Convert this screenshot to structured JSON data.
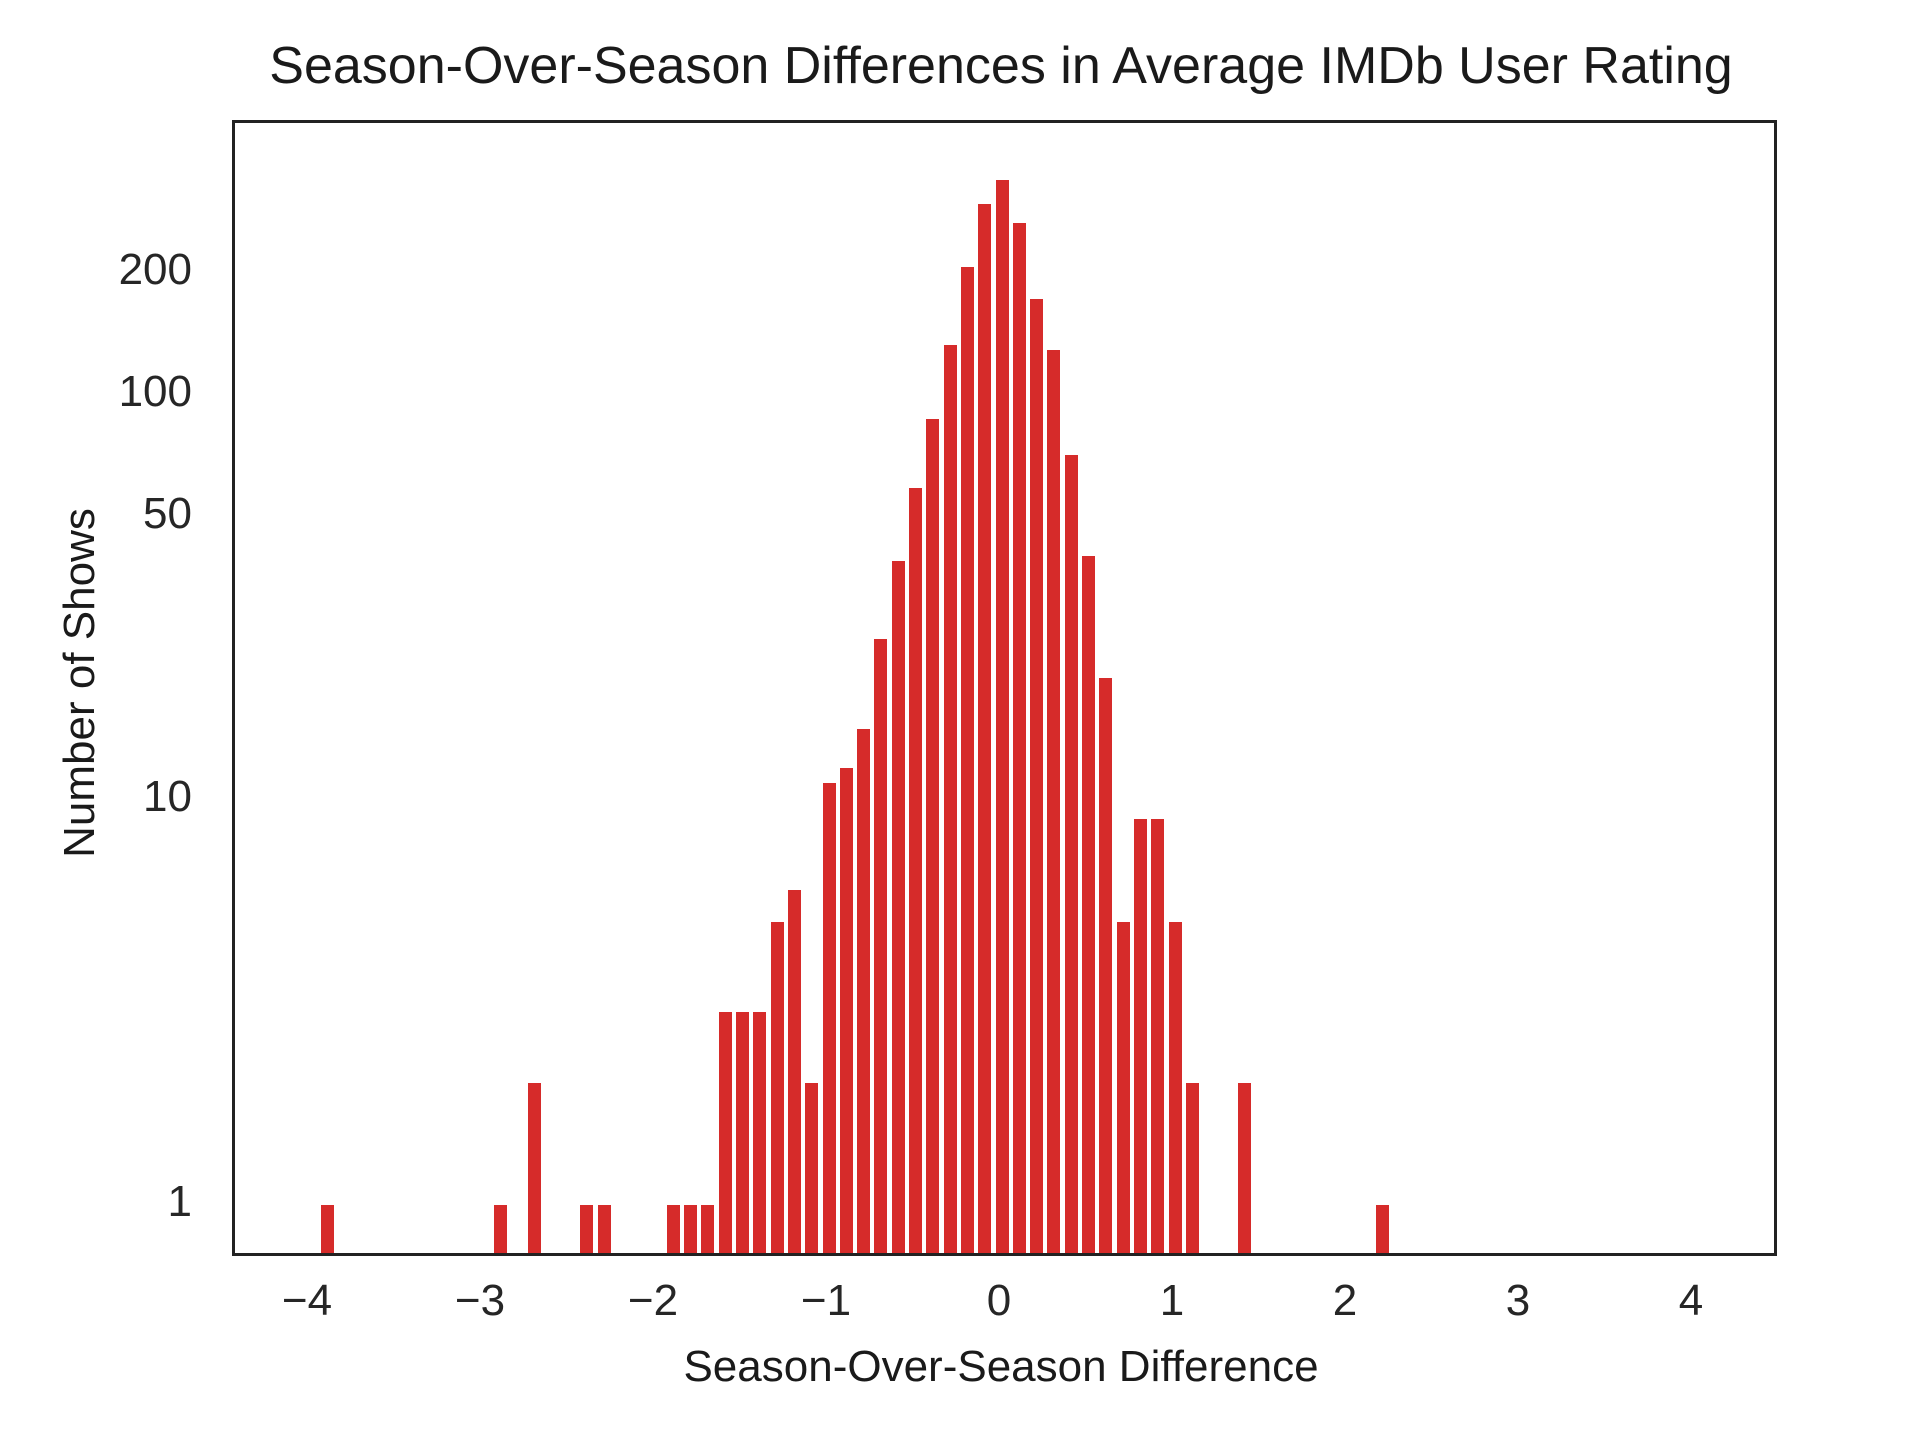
{
  "figure": {
    "title": "Season-Over-Season Differences in Average IMDb User Rating",
    "xlabel": "Season-Over-Season Difference",
    "ylabel": "Number of Shows"
  },
  "chart_data": {
    "type": "bar",
    "subtype": "histogram",
    "title": "Season-Over-Season Differences in Average IMDb User Rating",
    "xlabel": "Season-Over-Season Difference",
    "ylabel": "Number of Shows",
    "x_scale": "linear",
    "y_scale": "log",
    "xlim": [
      -4.45,
      4.45
    ],
    "ylim": [
      0.77,
      469
    ],
    "grid": false,
    "legend": false,
    "bin_width": 0.1,
    "x_ticks": [
      {
        "value": -4,
        "label": "−4"
      },
      {
        "value": -3,
        "label": "−3"
      },
      {
        "value": -2,
        "label": "−2"
      },
      {
        "value": -1,
        "label": "−1"
      },
      {
        "value": 0,
        "label": "0"
      },
      {
        "value": 1,
        "label": "1"
      },
      {
        "value": 2,
        "label": "2"
      },
      {
        "value": 3,
        "label": "3"
      },
      {
        "value": 4,
        "label": "4"
      }
    ],
    "y_ticks": [
      {
        "value": 1,
        "label": "1"
      },
      {
        "value": 10,
        "label": "10"
      },
      {
        "value": 50,
        "label": "50"
      },
      {
        "value": 100,
        "label": "100"
      },
      {
        "value": 200,
        "label": "200"
      }
    ],
    "bars": [
      {
        "x": -3.9,
        "count": 1
      },
      {
        "x": -2.9,
        "count": 1
      },
      {
        "x": -2.7,
        "count": 2
      },
      {
        "x": -2.4,
        "count": 1
      },
      {
        "x": -2.3,
        "count": 1
      },
      {
        "x": -1.9,
        "count": 1
      },
      {
        "x": -1.8,
        "count": 1
      },
      {
        "x": -1.7,
        "count": 1
      },
      {
        "x": -1.6,
        "count": 3
      },
      {
        "x": -1.5,
        "count": 3
      },
      {
        "x": -1.4,
        "count": 3
      },
      {
        "x": -1.3,
        "count": 5
      },
      {
        "x": -1.2,
        "count": 6
      },
      {
        "x": -1.1,
        "count": 2
      },
      {
        "x": -1.0,
        "count": 11
      },
      {
        "x": -0.9,
        "count": 12
      },
      {
        "x": -0.8,
        "count": 15
      },
      {
        "x": -0.7,
        "count": 25
      },
      {
        "x": -0.6,
        "count": 39
      },
      {
        "x": -0.5,
        "count": 59
      },
      {
        "x": -0.4,
        "count": 87
      },
      {
        "x": -0.3,
        "count": 133
      },
      {
        "x": -0.2,
        "count": 207
      },
      {
        "x": -0.1,
        "count": 296
      },
      {
        "x": 0.0,
        "count": 339
      },
      {
        "x": 0.1,
        "count": 266
      },
      {
        "x": 0.2,
        "count": 173
      },
      {
        "x": 0.3,
        "count": 129
      },
      {
        "x": 0.4,
        "count": 71
      },
      {
        "x": 0.5,
        "count": 40
      },
      {
        "x": 0.6,
        "count": 20
      },
      {
        "x": 0.7,
        "count": 5
      },
      {
        "x": 0.8,
        "count": 9
      },
      {
        "x": 0.9,
        "count": 9
      },
      {
        "x": 1.0,
        "count": 5
      },
      {
        "x": 1.1,
        "count": 2
      },
      {
        "x": 1.4,
        "count": 2
      },
      {
        "x": 2.2,
        "count": 1
      }
    ],
    "colors": {
      "bar": "#d62b2a",
      "spine": "#222222",
      "text": "#1a1a1a",
      "tick_text": "#262626",
      "background": "#ffffff"
    }
  }
}
